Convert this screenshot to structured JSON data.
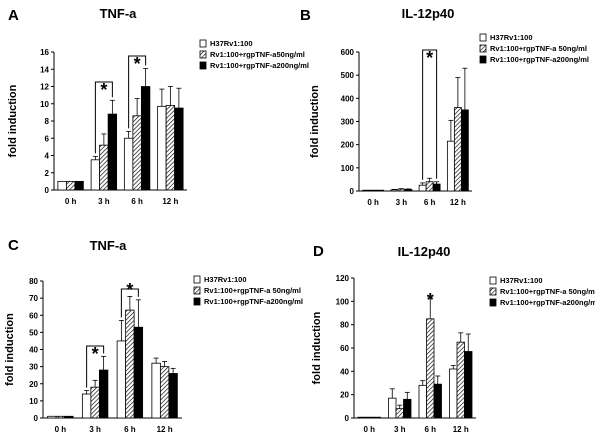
{
  "figure": {
    "panel_letters": [
      "A",
      "B",
      "C",
      "D"
    ]
  },
  "legend_colors": {
    "white": "#ffffff",
    "hatched_stroke": "#000000",
    "black": "#000000"
  },
  "chart_data": [
    {
      "id": "A",
      "type": "bar",
      "title": "TNF-a",
      "ylabel": "fold induction",
      "xlabel": "",
      "categories": [
        "0 h",
        "3 h",
        "6 h",
        "12 h"
      ],
      "ylim": [
        0,
        16
      ],
      "yticks": [
        0,
        2,
        4,
        6,
        8,
        10,
        12,
        14,
        16
      ],
      "grid": false,
      "legend_position": "top-right",
      "series": [
        {
          "name": "H37Rv1:100",
          "fill": "white",
          "values": [
            1.0,
            3.5,
            6.0,
            9.7
          ],
          "errors": [
            0,
            0.4,
            0.8,
            2.0
          ]
        },
        {
          "name": "Rv1:100+rgpTNF-a50ng/ml",
          "fill": "hatched",
          "values": [
            1.0,
            5.2,
            8.6,
            9.8
          ],
          "errors": [
            0,
            1.3,
            2.0,
            2.2
          ]
        },
        {
          "name": "Rv1:100+rgpTNF-a200ng/ml",
          "fill": "black",
          "values": [
            1.0,
            8.8,
            12.0,
            9.5
          ],
          "errors": [
            0,
            1.6,
            2.1,
            2.3
          ]
        }
      ],
      "significance": [
        {
          "from_category": 1,
          "label": "*"
        },
        {
          "from_category": 2,
          "label": "*"
        }
      ]
    },
    {
      "id": "B",
      "type": "bar",
      "title": "IL-12p40",
      "ylabel": "fold induction",
      "xlabel": "",
      "categories": [
        "0 h",
        "3 h",
        "6 h",
        "12 h"
      ],
      "ylim": [
        0,
        600
      ],
      "yticks": [
        0,
        100,
        200,
        300,
        400,
        500,
        600
      ],
      "grid": false,
      "legend_position": "top-right",
      "series": [
        {
          "name": "H37Rv1:100",
          "fill": "white",
          "values": [
            1,
            5,
            25,
            215
          ],
          "errors": [
            0,
            2,
            10,
            90
          ]
        },
        {
          "name": "Rv1:100+rgpTNF-a 50ng/ml",
          "fill": "hatched",
          "values": [
            1,
            8,
            40,
            360
          ],
          "errors": [
            0,
            2,
            15,
            130
          ]
        },
        {
          "name": "Rv1:100+rgpTNF-a200ng/ml",
          "fill": "black",
          "values": [
            1,
            7,
            30,
            350
          ],
          "errors": [
            0,
            2,
            10,
            180
          ]
        }
      ],
      "significance": [
        {
          "from_category": 2,
          "label": "*"
        }
      ]
    },
    {
      "id": "C",
      "type": "bar",
      "title": "TNF-a",
      "ylabel": "fold induction",
      "xlabel": "",
      "categories": [
        "0 h",
        "3 h",
        "6 h",
        "12 h"
      ],
      "ylim": [
        0,
        80
      ],
      "yticks": [
        0,
        10,
        20,
        30,
        40,
        50,
        60,
        70,
        80
      ],
      "grid": false,
      "legend_position": "top-right",
      "series": [
        {
          "name": "H37Rv1:100",
          "fill": "white",
          "values": [
            1,
            14,
            45,
            32
          ],
          "errors": [
            0,
            2,
            12,
            3
          ]
        },
        {
          "name": "Rv1:100+rgpTNF-a 50ng/ml",
          "fill": "hatched",
          "values": [
            1,
            18,
            63,
            30
          ],
          "errors": [
            0,
            4,
            8,
            3
          ]
        },
        {
          "name": "Rv1:100+rgpTNF-a200ng/ml",
          "fill": "black",
          "values": [
            1,
            28,
            53,
            26
          ],
          "errors": [
            0,
            8,
            16,
            3
          ]
        }
      ],
      "significance": [
        {
          "from_category": 1,
          "label": "*"
        },
        {
          "from_category": 2,
          "label": "*"
        }
      ]
    },
    {
      "id": "D",
      "type": "bar",
      "title": "IL-12p40",
      "ylabel": "fold induction",
      "xlabel": "",
      "categories": [
        "0 h",
        "3 h",
        "6 h",
        "12 h"
      ],
      "ylim": [
        0,
        120
      ],
      "yticks": [
        0,
        20,
        40,
        60,
        80,
        100,
        120
      ],
      "grid": false,
      "legend_position": "top-right",
      "series": [
        {
          "name": "H37Rv1:100",
          "fill": "white",
          "values": [
            0.5,
            17,
            28,
            42
          ],
          "errors": [
            0,
            8,
            4,
            3
          ]
        },
        {
          "name": "Rv1:100+rgpTNF-a 50ng/ml",
          "fill": "hatched",
          "values": [
            0.5,
            8,
            85,
            65
          ],
          "errors": [
            0,
            3,
            18,
            8
          ]
        },
        {
          "name": "Rv1:100+rgpTNF-a200ng/ml",
          "fill": "black",
          "values": [
            0.5,
            16,
            29,
            57
          ],
          "errors": [
            0,
            6,
            7,
            15
          ]
        }
      ],
      "significance": [
        {
          "category": 2,
          "label": "*"
        }
      ]
    }
  ]
}
